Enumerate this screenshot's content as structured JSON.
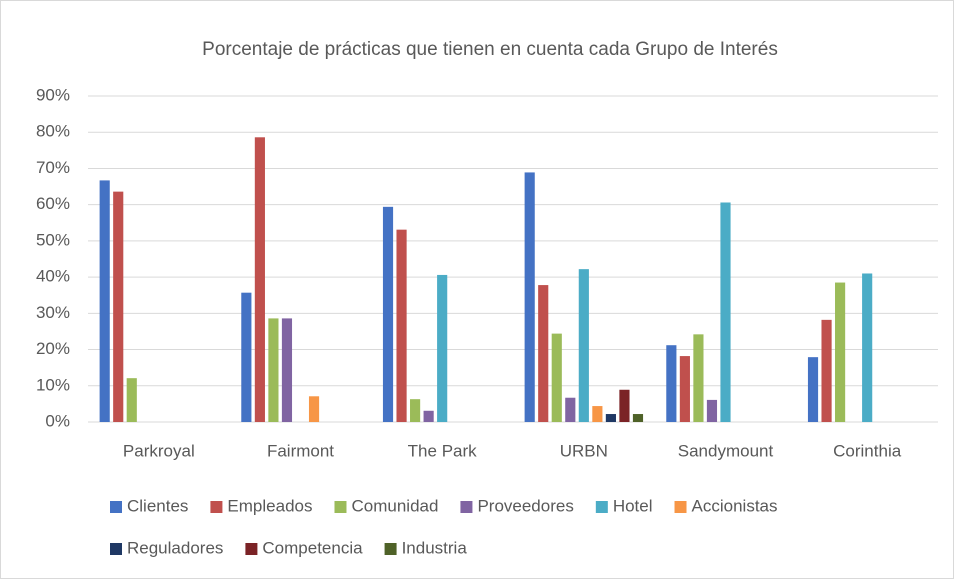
{
  "chart_data": {
    "type": "bar",
    "title": "Porcentaje de prácticas que tienen en cuenta cada Grupo de Interés",
    "categories": [
      "Parkroyal",
      "Fairmont",
      "The Park",
      "URBN",
      "Sandymount",
      "Corinthia"
    ],
    "series": [
      {
        "name": "Clientes",
        "color": "#4472c4",
        "values": [
          66.7,
          35.7,
          59.4,
          68.9,
          21.2,
          17.9
        ]
      },
      {
        "name": "Empleados",
        "color": "#c0504d",
        "values": [
          63.6,
          78.6,
          53.1,
          37.8,
          18.2,
          28.2
        ]
      },
      {
        "name": "Comunidad",
        "color": "#9bbb59",
        "values": [
          12.1,
          28.6,
          6.3,
          24.4,
          24.2,
          38.5
        ]
      },
      {
        "name": "Proveedores",
        "color": "#8064a2",
        "values": [
          0,
          28.6,
          3.1,
          6.7,
          6.1,
          0
        ]
      },
      {
        "name": "Hotel",
        "color": "#4bacc6",
        "values": [
          0,
          0,
          40.6,
          42.2,
          60.6,
          41.0
        ]
      },
      {
        "name": "Accionistas",
        "color": "#f79646",
        "values": [
          0,
          7.1,
          0,
          4.4,
          0,
          0
        ]
      },
      {
        "name": "Reguladores",
        "color": "#1f3864",
        "values": [
          0,
          0,
          0,
          2.2,
          0,
          0
        ]
      },
      {
        "name": "Competencia",
        "color": "#7b2326",
        "values": [
          0,
          0,
          0,
          8.9,
          0,
          0
        ]
      },
      {
        "name": "Industria",
        "color": "#4f6228",
        "values": [
          0,
          0,
          0,
          2.2,
          0,
          0
        ]
      }
    ],
    "ylim": [
      0,
      90
    ],
    "yticks": [
      {
        "value": 0,
        "label": "0%"
      },
      {
        "value": 10,
        "label": "10%"
      },
      {
        "value": 20,
        "label": "20%"
      },
      {
        "value": 30,
        "label": "30%"
      },
      {
        "value": 40,
        "label": "40%"
      },
      {
        "value": 50,
        "label": "50%"
      },
      {
        "value": 60,
        "label": "60%"
      },
      {
        "value": 70,
        "label": "70%"
      },
      {
        "value": 80,
        "label": "80%"
      },
      {
        "value": 90,
        "label": "90%"
      }
    ],
    "grid": true,
    "legend": "bottom"
  }
}
